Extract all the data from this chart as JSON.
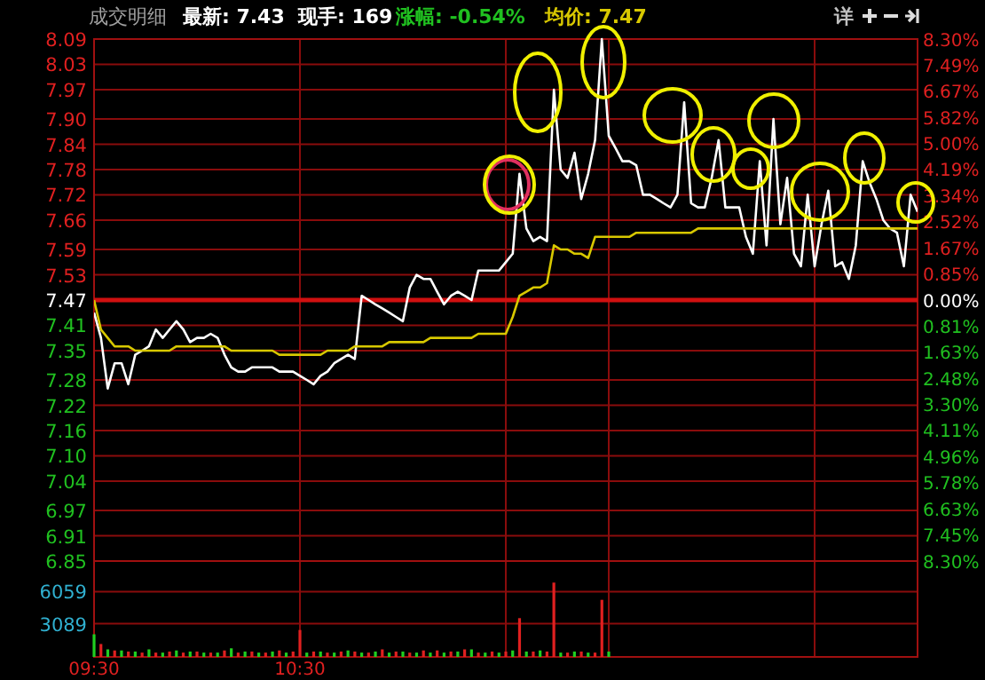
{
  "chart_data": [
    {
      "type": "line",
      "title": "成交明细",
      "annotations": [
        "最新: 7.43",
        "现手: 169",
        "涨幅: -0.54%",
        "均价: 7.47",
        "详"
      ],
      "categories": [
        null,
        null,
        null,
        null,
        null,
        null,
        null,
        null,
        null,
        null,
        null,
        null,
        null,
        null,
        null,
        null,
        null,
        null,
        null,
        null,
        null,
        null,
        null,
        null,
        null,
        null,
        null,
        null,
        null,
        null,
        null,
        null,
        null,
        null,
        null,
        null,
        null,
        null,
        null,
        null,
        null,
        null,
        null,
        null,
        null,
        null,
        null,
        null,
        null,
        null,
        null,
        null,
        null,
        null,
        null,
        null,
        null,
        null,
        null,
        null,
        null,
        null,
        null,
        null,
        null,
        null,
        null,
        null,
        null,
        null,
        null,
        null,
        null,
        null,
        null,
        null,
        null,
        null,
        null,
        null,
        null,
        null,
        null,
        null,
        null,
        null,
        null,
        null,
        null,
        null,
        null,
        null,
        null,
        null,
        null,
        null,
        null,
        null,
        null,
        null,
        null,
        null,
        null,
        null,
        null,
        null,
        null,
        null,
        null,
        null,
        null,
        null,
        null,
        null,
        null,
        null,
        null,
        null,
        null,
        null,
        null
      ],
      "ylim": [
        6.85,
        8.09
      ],
      "yticks": [
        8.09,
        8.03,
        7.97,
        {
          "value": 7.9,
          "label": "7.90"
        },
        7.84,
        7.78,
        7.72,
        7.66,
        7.59,
        7.53,
        7.47,
        7.41,
        7.35,
        7.28,
        7.22,
        7.16,
        {
          "value": 7.1,
          "label": "7.10"
        },
        7.04,
        6.97,
        6.91,
        6.85
      ],
      "y2lim": [
        -8.3,
        8.3
      ],
      "y2ticks": [
        {
          "value": 8.3,
          "label": "8.30%"
        },
        {
          "value": 7.49,
          "label": "7.49%"
        },
        {
          "value": 6.67,
          "label": "6.67%"
        },
        {
          "value": 5.82,
          "label": "5.82%"
        },
        {
          "value": 5.0,
          "label": "5.00%"
        },
        {
          "value": 4.19,
          "label": "4.19%"
        },
        {
          "value": 3.34,
          "label": "3.34%"
        },
        {
          "value": 2.52,
          "label": "2.52%"
        },
        {
          "value": 1.67,
          "label": "1.67%"
        },
        {
          "value": 0.85,
          "label": "0.85%"
        },
        {
          "value": 0,
          "label": "0.00%"
        },
        {
          "value": -0.81,
          "label": "0.81%"
        },
        {
          "value": -1.63,
          "label": "1.63%"
        },
        {
          "value": -2.48,
          "label": "2.48%"
        },
        {
          "value": -3.3,
          "label": "3.30%"
        },
        {
          "value": -4.11,
          "label": "4.11%"
        },
        {
          "value": -4.96,
          "label": "4.96%"
        },
        {
          "value": -5.78,
          "label": "5.78%"
        },
        {
          "value": -6.63,
          "label": "6.63%"
        },
        {
          "value": -7.45,
          "label": "7.45%"
        },
        {
          "value": -8.3,
          "label": "8.30%"
        }
      ],
      "tick_labels": "y",
      "grid": true,
      "ref_lines": [
        {
          "axis": "y",
          "value": 7.47,
          "color": "#d01010"
        }
      ],
      "series": [
        {
          "color": "#ffffff",
          "values": [
            7.44,
            7.38,
            7.26,
            7.32,
            7.32,
            7.27,
            7.34,
            7.35,
            7.36,
            7.4,
            7.38,
            7.4,
            7.42,
            7.4,
            7.37,
            7.38,
            7.38,
            7.39,
            7.38,
            7.34,
            7.31,
            7.3,
            7.3,
            7.31,
            7.31,
            7.31,
            7.31,
            7.3,
            7.3,
            7.3,
            7.29,
            7.28,
            7.27,
            7.29,
            7.3,
            7.32,
            7.33,
            7.34,
            7.33,
            7.48,
            7.47,
            7.46,
            7.45,
            7.44,
            7.43,
            7.42,
            7.5,
            7.53,
            7.52,
            7.52,
            7.49,
            7.46,
            7.48,
            7.49,
            7.48,
            7.47,
            7.54,
            7.54,
            7.54,
            7.54,
            7.56,
            7.58,
            7.77,
            7.64,
            7.61,
            7.62,
            7.61,
            7.97,
            7.78,
            7.76,
            7.82,
            7.71,
            7.77,
            7.85,
            8.09,
            7.86,
            7.83,
            7.8,
            7.8,
            7.79,
            7.72,
            7.72,
            7.71,
            7.7,
            7.69,
            7.72,
            7.94,
            7.7,
            7.69,
            7.69,
            7.76,
            7.85,
            7.69,
            7.69,
            7.69,
            7.62,
            7.58,
            7.8,
            7.6,
            7.9,
            7.65,
            7.76,
            7.58,
            7.55,
            7.72,
            7.55,
            7.65,
            7.73,
            7.55,
            7.56,
            7.52,
            7.6,
            7.8,
            7.75,
            7.71,
            7.66,
            7.64,
            7.63,
            7.55,
            7.72,
            7.68
          ]
        },
        {
          "color": "#d8c800",
          "values": [
            7.47,
            7.4,
            7.38,
            7.36,
            7.36,
            7.36,
            7.35,
            7.35,
            7.35,
            7.35,
            7.35,
            7.35,
            7.36,
            7.36,
            7.36,
            7.36,
            7.36,
            7.36,
            7.36,
            7.36,
            7.35,
            7.35,
            7.35,
            7.35,
            7.35,
            7.35,
            7.35,
            7.34,
            7.34,
            7.34,
            7.34,
            7.34,
            7.34,
            7.34,
            7.35,
            7.35,
            7.35,
            7.35,
            7.36,
            7.36,
            7.36,
            7.36,
            7.36,
            7.37,
            7.37,
            7.37,
            7.37,
            7.37,
            7.37,
            7.38,
            7.38,
            7.38,
            7.38,
            7.38,
            7.38,
            7.38,
            7.39,
            7.39,
            7.39,
            7.39,
            7.39,
            7.43,
            7.48,
            7.49,
            7.5,
            7.5,
            7.51,
            7.6,
            7.59,
            7.59,
            7.58,
            7.58,
            7.57,
            7.62,
            7.62,
            7.62,
            7.62,
            7.62,
            7.62,
            7.63,
            7.63,
            7.63,
            7.63,
            7.63,
            7.63,
            7.63,
            7.63,
            7.63,
            7.64,
            7.64,
            7.64,
            7.64,
            7.64,
            7.64,
            7.64,
            7.64,
            7.64,
            7.64,
            7.64,
            7.64,
            7.64,
            7.64,
            7.64,
            7.64,
            7.64,
            7.64,
            7.64,
            7.64,
            7.64,
            7.64,
            7.64,
            7.64,
            7.64,
            7.64,
            7.64,
            7.64,
            7.64,
            7.64,
            7.64,
            7.64,
            7.64
          ]
        }
      ]
    },
    {
      "type": "bar",
      "categories": [
        "09:30",
        null,
        null,
        null,
        null,
        null,
        null,
        null,
        null,
        null,
        null,
        null,
        null,
        null,
        null,
        null,
        null,
        null,
        null,
        null,
        null,
        null,
        null,
        null,
        null,
        null,
        null,
        null,
        null,
        null,
        "10:30",
        null,
        null,
        null,
        null,
        null,
        null,
        null,
        null,
        null,
        null,
        null,
        null,
        null,
        null,
        null,
        null,
        null,
        null,
        null,
        null,
        null,
        null,
        null,
        null,
        null,
        null,
        null,
        null,
        null,
        null,
        null,
        null,
        null,
        null,
        null,
        null,
        null,
        null,
        null,
        null,
        null,
        null,
        null,
        null,
        null,
        null,
        null,
        null,
        null,
        null,
        null,
        null,
        null,
        null,
        null,
        null,
        null,
        null,
        null,
        null,
        null,
        null,
        null,
        null,
        null,
        null,
        null,
        null,
        null,
        null,
        null,
        null,
        null,
        null,
        null,
        null,
        null,
        null,
        null,
        null,
        null,
        null,
        null,
        null,
        null,
        null,
        null,
        null,
        null,
        null
      ],
      "ylim": [
        0,
        8900
      ],
      "yticks": [
        3089,
        6059
      ],
      "grid": true,
      "values": [
        2100,
        1200,
        700,
        600,
        600,
        500,
        500,
        400,
        700,
        400,
        400,
        500,
        600,
        400,
        500,
        500,
        400,
        400,
        400,
        600,
        800,
        400,
        500,
        500,
        400,
        400,
        500,
        600,
        400,
        500,
        2500,
        400,
        500,
        500,
        400,
        400,
        500,
        600,
        500,
        400,
        400,
        500,
        700,
        400,
        500,
        500,
        400,
        400,
        600,
        400,
        600,
        400,
        500,
        500,
        700,
        700,
        400,
        400,
        500,
        400,
        500,
        600,
        3600,
        500,
        500,
        600,
        500,
        6900,
        400,
        400,
        500,
        500,
        400,
        400,
        5300,
        500,
        null,
        null,
        null,
        null,
        null,
        null,
        null,
        null,
        null,
        null,
        null,
        null,
        null,
        null,
        null,
        null,
        null,
        null,
        null,
        null,
        null,
        null,
        null,
        null,
        null,
        null,
        null,
        null,
        null,
        null,
        null,
        null,
        null,
        null,
        null,
        null,
        null,
        null,
        null,
        null,
        null,
        null,
        null,
        null,
        null
      ],
      "colors": [
        "#20d020",
        "#e02020",
        "#20d020",
        "#e02020",
        "#20d020",
        "#e02020",
        "#20d020",
        "#e02020",
        "#20d020",
        "#e02020",
        "#20d020",
        "#e02020",
        "#20d020",
        "#e02020",
        "#20d020",
        "#e02020",
        "#20d020",
        "#e02020",
        "#20d020",
        "#e02020",
        "#20d020",
        "#e02020",
        "#20d020",
        "#e02020",
        "#20d020",
        "#e02020",
        "#20d020",
        "#e02020",
        "#20d020",
        "#e02020",
        "#e02020",
        "#20d020",
        "#e02020",
        "#20d020",
        "#e02020",
        "#20d020",
        "#e02020",
        "#20d020",
        "#e02020",
        "#20d020",
        "#e02020",
        "#20d020",
        "#e02020",
        "#20d020",
        "#e02020",
        "#20d020",
        "#e02020",
        "#20d020",
        "#e02020",
        "#20d020",
        "#e02020",
        "#20d020",
        "#e02020",
        "#20d020",
        "#e02020",
        "#20d020",
        "#e02020",
        "#20d020",
        "#e02020",
        "#20d020",
        "#e02020",
        "#20d020",
        "#e02020",
        "#20d020",
        "#e02020",
        "#20d020",
        "#e02020",
        "#e02020",
        "#20d020",
        "#e02020",
        "#20d020",
        "#e02020",
        "#20d020",
        "#e02020",
        "#e02020",
        "#20d020",
        null,
        null,
        null,
        null,
        null,
        null,
        null,
        null,
        null,
        null,
        null,
        null,
        null,
        null,
        null,
        null,
        null,
        null,
        null,
        null,
        null,
        null,
        null,
        null,
        null,
        null,
        null,
        null,
        null,
        null,
        null,
        null,
        null,
        null,
        null,
        null,
        null,
        null,
        null,
        null,
        null,
        null,
        null,
        null,
        null
      ]
    }
  ]
}
